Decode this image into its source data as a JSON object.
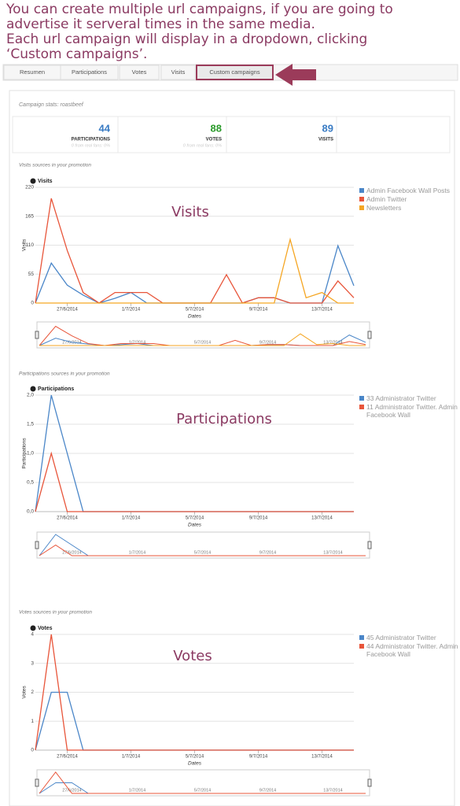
{
  "annotation": [
    "You can create multiple url campaigns, if you are going to",
    "advertise it serveral times in the same media.",
    "Each url campaign will display in a dropdown, clicking",
    "‘Custom campaigns’."
  ],
  "nav": {
    "tabs": [
      "Resumen",
      "Participations",
      "Votes",
      "Visits",
      "Custom campaigns"
    ]
  },
  "campaign_title": "Campaign stats: roastbeef",
  "stats": [
    {
      "value": 44,
      "label": "PARTICIPATIONS",
      "note": "0 from real fans: 0%",
      "color": "#3a7cc4"
    },
    {
      "value": 88,
      "label": "VOTES",
      "note": "0 from real fans: 0%",
      "color": "#2a9a2a"
    },
    {
      "value": 89,
      "label": "VISITS",
      "color": "#3a7cc4"
    }
  ],
  "chart_data": [
    {
      "type": "line",
      "section_title": "Visits sources in your promotion",
      "title": "Visits",
      "overlay_label": "Visits",
      "ylabel": "Visits",
      "xlabel": "Dates",
      "categories": [
        null,
        null,
        "27/6/2014",
        null,
        null,
        null,
        "1/7/2014",
        null,
        null,
        null,
        "5/7/2014",
        null,
        null,
        null,
        "9/7/2014",
        null,
        null,
        null,
        "13/7/2014",
        null,
        null
      ],
      "ylim": [
        0,
        220
      ],
      "yticks": [
        0,
        55,
        110,
        165,
        220
      ],
      "grid": true,
      "series": [
        {
          "name": "Admin Facebook Wall Posts",
          "color": "#4a86c8",
          "values": [
            0,
            76,
            34,
            15,
            0,
            9,
            20,
            0,
            0,
            0,
            0,
            0,
            0,
            0,
            10,
            10,
            0,
            0,
            0,
            109,
            33
          ]
        },
        {
          "name": "Admin Twitter",
          "color": "#e8553a",
          "values": [
            0,
            199,
            100,
            20,
            0,
            20,
            20,
            20,
            0,
            0,
            0,
            0,
            54,
            0,
            10,
            10,
            0,
            0,
            0,
            42,
            10
          ]
        },
        {
          "name": "Newsletters",
          "color": "#f5a623",
          "values": [
            0,
            0,
            0,
            0,
            0,
            0,
            0,
            0,
            0,
            0,
            0,
            0,
            0,
            0,
            0,
            0,
            121,
            10,
            20,
            0,
            0
          ]
        }
      ]
    },
    {
      "type": "line",
      "section_title": "Participations sources in your promotion",
      "title": "Participations",
      "overlay_label": "Participations",
      "ylabel": "Participations",
      "xlabel": "Dates",
      "categories": [
        null,
        null,
        "27/6/2014",
        null,
        null,
        null,
        "1/7/2014",
        null,
        null,
        null,
        "5/7/2014",
        null,
        null,
        null,
        "9/7/2014",
        null,
        null,
        null,
        "13/7/2014",
        null,
        null
      ],
      "ylim": [
        0,
        2
      ],
      "yticks": [
        {
          "value": 0,
          "label": "0,0"
        },
        {
          "value": 0.5,
          "label": "0,5"
        },
        {
          "value": 1,
          "label": "1,0"
        },
        {
          "value": 1.5,
          "label": "1,5"
        },
        {
          "value": 2,
          "label": "2,0"
        }
      ],
      "grid": true,
      "series": [
        {
          "name": "33 Administrator Twitter",
          "color": "#4a86c8",
          "values": [
            0,
            2,
            1,
            0,
            0,
            0,
            0,
            0,
            0,
            0,
            0,
            0,
            0,
            0,
            0,
            0,
            0,
            0,
            0,
            0,
            0
          ]
        },
        {
          "name": "11 Administrator Twitter. Admin Facebook Wall",
          "color": "#e8553a",
          "values": [
            0,
            1,
            0,
            0,
            0,
            0,
            0,
            0,
            0,
            0,
            0,
            0,
            0,
            0,
            0,
            0,
            0,
            0,
            0,
            0,
            0
          ]
        }
      ]
    },
    {
      "type": "line",
      "section_title": "Votes sources in your promotion",
      "title": "Votes",
      "overlay_label": "Votes",
      "ylabel": "Votes",
      "xlabel": "Dates",
      "categories": [
        null,
        null,
        "27/6/2014",
        null,
        null,
        null,
        "1/7/2014",
        null,
        null,
        null,
        "5/7/2014",
        null,
        null,
        null,
        "9/7/2014",
        null,
        null,
        null,
        "13/7/2014",
        null,
        null
      ],
      "ylim": [
        0,
        4
      ],
      "yticks": [
        0,
        1,
        2,
        3,
        4
      ],
      "grid": true,
      "series": [
        {
          "name": "45 Administrator Twitter",
          "color": "#4a86c8",
          "values": [
            0,
            2,
            2,
            0,
            0,
            0,
            0,
            0,
            0,
            0,
            0,
            0,
            0,
            0,
            0,
            0,
            0,
            0,
            0,
            0,
            0
          ]
        },
        {
          "name": "44 Administrator Twitter. Admin Facebook Wall",
          "color": "#e8553a",
          "values": [
            0,
            4,
            0,
            0,
            0,
            0,
            0,
            0,
            0,
            0,
            0,
            0,
            0,
            0,
            0,
            0,
            0,
            0,
            0,
            0,
            0
          ]
        }
      ]
    }
  ]
}
